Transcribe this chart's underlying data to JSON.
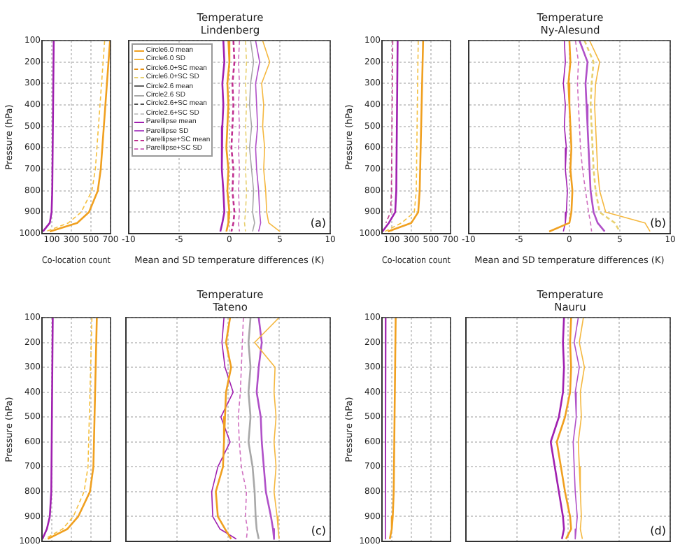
{
  "chart_data": [
    {
      "type": "line",
      "xlabel": "Co-location count",
      "ylabel": "Pressure (hPa)",
      "xlim": [
        0,
        700
      ],
      "xticks": [
        100,
        300,
        500,
        700
      ],
      "ylim": [
        1000,
        100
      ],
      "yticks": [
        100,
        200,
        300,
        400,
        500,
        600,
        700,
        800,
        900,
        1000
      ],
      "grid": true,
      "series": [
        {
          "color": "#f0a020",
          "line_style": "solid",
          "x": [
            695,
            600,
            570,
            480,
            360,
            80
          ],
          "values": [
            100,
            700,
            800,
            900,
            950,
            990
          ]
        },
        {
          "color": "#f5c040",
          "line_style": "dashed",
          "x": [
            640,
            545,
            510,
            400,
            270,
            40
          ],
          "values": [
            100,
            700,
            800,
            900,
            950,
            990
          ]
        },
        {
          "color": "#a020b0",
          "line_style": "solid",
          "x": [
            120,
            105,
            98,
            80,
            10
          ],
          "values": [
            100,
            800,
            900,
            950,
            990
          ]
        }
      ]
    },
    {
      "type": "line",
      "title": "Temperature",
      "subtitle": "Lindenberg",
      "xlabel": "Mean and SD temperature differences (K)",
      "xlim": [
        -10,
        10
      ],
      "xticks": [
        -10,
        -5,
        0,
        5,
        10
      ],
      "ylim": [
        1000,
        100
      ],
      "yticks": [
        100,
        200,
        300,
        400,
        500,
        600,
        700,
        800,
        900,
        1000
      ],
      "grid": true,
      "tick_labels": "x",
      "legend": "top left",
      "annotations": [
        "(a)"
      ],
      "series": [
        {
          "name": "Circle6.0 mean",
          "color": "#f0a020",
          "line_style": "solid",
          "x": [
            -0.1,
            0.0,
            -0.2,
            -0.1,
            -0.2,
            -0.3,
            -0.1,
            -0.2,
            0.0,
            -0.1,
            -0.3
          ],
          "values": [
            100,
            200,
            300,
            400,
            500,
            600,
            700,
            800,
            900,
            950,
            990
          ]
        },
        {
          "name": "Circle6.0 SD",
          "color": "#f5b840",
          "line_style": "solid",
          "x": [
            3.3,
            4.0,
            3.2,
            3.4,
            3.3,
            3.5,
            3.4,
            3.6,
            3.7,
            3.9,
            5.0
          ],
          "values": [
            100,
            200,
            300,
            400,
            500,
            600,
            700,
            800,
            900,
            950,
            990
          ]
        },
        {
          "name": "Circle6.0+SC mean",
          "color": "#e89010",
          "line_style": "dashed"
        },
        {
          "name": "Circle6.0+SC SD",
          "color": "#e8d070",
          "line_style": "dashed",
          "x": [
            1.6,
            1.7,
            1.6,
            1.7,
            1.6,
            1.7,
            1.6,
            1.7,
            1.6,
            1.5,
            1.6
          ],
          "values": [
            100,
            200,
            300,
            400,
            500,
            600,
            700,
            800,
            900,
            950,
            990
          ]
        },
        {
          "name": "Circle2.6 mean",
          "color": "#606060",
          "line_style": "solid"
        },
        {
          "name": "Circle2.6 SD",
          "color": "#a8a8a8",
          "line_style": "solid",
          "x": [
            2.1,
            2.4,
            2.1,
            2.0,
            2.2,
            2.0,
            2.2,
            2.4,
            2.3,
            2.5,
            2.3
          ],
          "values": [
            100,
            200,
            300,
            400,
            500,
            600,
            700,
            800,
            900,
            950,
            990
          ]
        },
        {
          "name": "Circle2.6+SC mean",
          "color": "#505050",
          "line_style": "dashed"
        },
        {
          "name": "Circle2.6+SC SD",
          "color": "#c8c8c8",
          "line_style": "dashed"
        },
        {
          "name": "Parellipse mean",
          "color": "#a020b0",
          "line_style": "solid",
          "x": [
            -0.6,
            -0.5,
            -0.7,
            -0.6,
            -0.7,
            -0.8,
            -0.7,
            -0.6,
            -0.5,
            -0.7,
            -0.9
          ],
          "values": [
            100,
            200,
            300,
            400,
            500,
            600,
            700,
            800,
            900,
            950,
            990
          ]
        },
        {
          "name": "Parellipse SD",
          "color": "#b050c8",
          "line_style": "solid",
          "x": [
            2.6,
            3.0,
            2.6,
            2.7,
            2.8,
            2.6,
            2.7,
            2.9,
            3.0,
            3.1,
            2.9
          ],
          "values": [
            100,
            200,
            300,
            400,
            500,
            600,
            700,
            800,
            900,
            950,
            990
          ]
        },
        {
          "name": "Parellipse+SC mean",
          "color": "#c03090",
          "line_style": "dashed",
          "x": [
            0.4,
            0.5,
            0.3,
            0.4,
            0.3,
            0.2,
            0.4,
            0.3,
            0.5,
            0.4,
            0.2
          ],
          "values": [
            100,
            200,
            300,
            400,
            500,
            600,
            700,
            800,
            900,
            950,
            990
          ]
        },
        {
          "name": "Parellipse+SC SD",
          "color": "#d070c0",
          "line_style": "dashed",
          "x": [
            1.0,
            0.9,
            1.0,
            0.9,
            1.0,
            0.9,
            1.0,
            0.9,
            1.0,
            0.9,
            1.0
          ],
          "values": [
            100,
            200,
            300,
            400,
            500,
            600,
            700,
            800,
            900,
            950,
            990
          ]
        }
      ]
    },
    {
      "type": "line",
      "xlabel": "Co-location count",
      "ylabel": "Pressure (hPa)",
      "xlim": [
        0,
        700
      ],
      "xticks": [
        100,
        300,
        500,
        700
      ],
      "ylim": [
        1000,
        100
      ],
      "yticks": [
        100,
        200,
        300,
        400,
        500,
        600,
        700,
        800,
        900,
        1000
      ],
      "grid": true,
      "series": [
        {
          "color": "#f0a020",
          "line_style": "solid",
          "x": [
            420,
            385,
            370,
            300,
            60
          ],
          "values": [
            100,
            800,
            900,
            950,
            990
          ]
        },
        {
          "color": "#f5c040",
          "line_style": "dashed",
          "x": [
            370,
            350,
            330,
            200,
            30
          ],
          "values": [
            100,
            800,
            900,
            950,
            990
          ]
        },
        {
          "color": "#a020b0",
          "line_style": "solid",
          "x": [
            160,
            146,
            135,
            70,
            5
          ],
          "values": [
            100,
            800,
            900,
            950,
            990
          ]
        },
        {
          "color": "#c04090",
          "line_style": "dashed",
          "x": [
            110,
            96,
            88,
            40
          ],
          "values": [
            100,
            800,
            900,
            950
          ]
        }
      ]
    },
    {
      "type": "line",
      "title": "Temperature",
      "subtitle": "Ny-Alesund",
      "xlabel": "Mean and SD temperature differences (K)",
      "xlim": [
        -10,
        10
      ],
      "xticks": [
        -10,
        -5,
        0,
        5,
        10
      ],
      "ylim": [
        1000,
        100
      ],
      "yticks": [
        100,
        200,
        300,
        400,
        500,
        600,
        700,
        800,
        900,
        1000
      ],
      "grid": true,
      "tick_labels": "x",
      "annotations": [
        "(b)"
      ],
      "series": [
        {
          "color": "#f0a020",
          "line_style": "solid",
          "x": [
            0.0,
            0.1,
            -0.1,
            0.0,
            0.1,
            0.2,
            0.1,
            0.3,
            0.2,
            0.0,
            -2.0
          ],
          "values": [
            100,
            200,
            300,
            400,
            500,
            600,
            700,
            800,
            900,
            950,
            990
          ]
        },
        {
          "color": "#f5b840",
          "line_style": "solid",
          "x": [
            2.0,
            3.0,
            2.6,
            2.5,
            2.6,
            2.7,
            2.8,
            3.0,
            3.6,
            7.5,
            8.0
          ],
          "values": [
            100,
            200,
            300,
            400,
            500,
            600,
            700,
            800,
            900,
            950,
            990
          ]
        },
        {
          "color": "#e8d070",
          "line_style": "dashed",
          "x": [
            1.5,
            2.4,
            2.2,
            2.1,
            2.2,
            2.3,
            2.4,
            2.6,
            3.0,
            4.5,
            5.0
          ],
          "values": [
            100,
            200,
            300,
            400,
            500,
            600,
            700,
            800,
            900,
            950,
            990
          ]
        },
        {
          "color": "#a020b0",
          "line_style": "solid",
          "x": [
            -0.5,
            -0.4,
            -0.6,
            -0.4,
            -0.5,
            -0.3,
            -0.4,
            -0.2,
            -0.3,
            -0.4,
            -0.6
          ],
          "values": [
            100,
            200,
            300,
            400,
            500,
            600,
            700,
            800,
            900,
            950,
            990
          ]
        },
        {
          "color": "#b050c8",
          "line_style": "solid",
          "x": [
            1.0,
            1.8,
            1.6,
            1.7,
            1.8,
            1.9,
            2.0,
            2.1,
            2.4,
            2.8,
            3.5
          ],
          "values": [
            100,
            200,
            300,
            400,
            500,
            600,
            700,
            800,
            900,
            950,
            990
          ]
        },
        {
          "color": "#d070c0",
          "line_style": "dashed",
          "x": [
            0.6,
            0.9,
            0.8,
            0.9,
            1.0,
            1.1,
            1.3,
            1.6,
            1.9,
            2.1,
            2.2
          ],
          "values": [
            100,
            200,
            300,
            400,
            500,
            600,
            700,
            800,
            900,
            950,
            990
          ]
        }
      ]
    },
    {
      "type": "line",
      "ylabel": "Pressure (hPa)",
      "xlim": [
        0,
        700
      ],
      "xticks": [
        100,
        300,
        500,
        700
      ],
      "ylim": [
        1000,
        100
      ],
      "yticks": [
        100,
        200,
        300,
        400,
        500,
        600,
        700,
        800,
        900,
        1000
      ],
      "grid": true,
      "tick_labels": "y",
      "series": [
        {
          "color": "#f0a020",
          "line_style": "solid",
          "x": [
            560,
            525,
            490,
            370,
            260,
            60
          ],
          "values": [
            100,
            700,
            800,
            900,
            950,
            990
          ]
        },
        {
          "color": "#f5c040",
          "line_style": "dashed",
          "x": [
            510,
            470,
            430,
            320,
            210,
            30
          ],
          "values": [
            100,
            700,
            800,
            900,
            950,
            990
          ]
        },
        {
          "color": "#a020b0",
          "line_style": "solid",
          "x": [
            110,
            95,
            80,
            50,
            5
          ],
          "values": [
            100,
            800,
            900,
            950,
            990
          ]
        }
      ]
    },
    {
      "type": "line",
      "title": "Temperature",
      "subtitle": "Tateno",
      "xlim": [
        -10,
        10
      ],
      "xticks": [
        -10,
        -5,
        0,
        5,
        10
      ],
      "ylim": [
        1000,
        100
      ],
      "yticks": [
        100,
        200,
        300,
        400,
        500,
        600,
        700,
        800,
        900,
        1000
      ],
      "grid": true,
      "tick_labels": false,
      "annotations": [
        "(c)"
      ],
      "series": [
        {
          "color": "#f0a020",
          "line_style": "solid",
          "x": [
            0.2,
            -0.2,
            0.3,
            -0.2,
            -0.3,
            -0.4,
            -0.5,
            -1.2,
            -1.0,
            -0.3,
            0.3
          ],
          "values": [
            100,
            200,
            300,
            400,
            500,
            600,
            700,
            800,
            900,
            950,
            990
          ]
        },
        {
          "color": "#f5b840",
          "line_style": "solid",
          "x": [
            5.0,
            2.6,
            4.6,
            4.5,
            4.7,
            4.5,
            4.7,
            4.5,
            4.8,
            4.9,
            5.0
          ],
          "values": [
            100,
            200,
            300,
            400,
            500,
            600,
            700,
            800,
            900,
            950,
            990
          ]
        },
        {
          "color": "#a8a8a8",
          "line_style": "solid",
          "x": [
            2.2,
            2.0,
            2.2,
            2.0,
            2.2,
            2.0,
            2.4,
            2.6,
            2.7,
            2.8,
            3.0
          ],
          "values": [
            100,
            200,
            300,
            400,
            500,
            600,
            700,
            800,
            900,
            950,
            990
          ]
        },
        {
          "color": "#a020b0",
          "line_style": "solid",
          "x": [
            -0.4,
            -0.6,
            -0.3,
            0.5,
            -0.7,
            0.2,
            -1.0,
            -1.6,
            -1.5,
            -0.8,
            0.8
          ],
          "values": [
            100,
            200,
            300,
            400,
            500,
            600,
            700,
            800,
            900,
            950,
            990
          ]
        },
        {
          "color": "#b050c8",
          "line_style": "solid",
          "x": [
            3.0,
            3.3,
            3.0,
            2.8,
            3.2,
            3.3,
            3.5,
            3.7,
            4.2,
            4.4,
            4.5
          ],
          "values": [
            100,
            200,
            300,
            400,
            500,
            600,
            700,
            800,
            900,
            950,
            990
          ]
        },
        {
          "color": "#d070c0",
          "line_style": "dashed",
          "x": [
            1.5,
            1.4,
            1.3,
            1.2,
            1.0,
            1.1,
            1.3,
            1.8,
            1.7,
            1.9,
            1.8
          ],
          "values": [
            100,
            200,
            300,
            400,
            500,
            600,
            700,
            800,
            900,
            950,
            990
          ]
        }
      ]
    },
    {
      "type": "line",
      "ylabel": "Pressure (hPa)",
      "xlim": [
        0,
        700
      ],
      "xticks": [
        100,
        300,
        500,
        700
      ],
      "ylim": [
        1000,
        100
      ],
      "yticks": [
        100,
        200,
        300,
        400,
        500,
        600,
        700,
        800,
        900,
        1000
      ],
      "grid": true,
      "tick_labels": "y",
      "series": [
        {
          "color": "#f0a020",
          "line_style": "solid",
          "x": [
            140,
            120,
            110,
            100,
            80
          ],
          "values": [
            100,
            800,
            900,
            950,
            990
          ]
        },
        {
          "color": "#a020b0",
          "line_style": "solid",
          "x": [
            40,
            35
          ],
          "values": [
            100,
            990
          ]
        }
      ]
    },
    {
      "type": "line",
      "title": "Temperature",
      "subtitle": "Nauru",
      "xlim": [
        -10,
        10
      ],
      "xticks": [
        -10,
        -5,
        0,
        5,
        10
      ],
      "ylim": [
        1000,
        100
      ],
      "yticks": [
        100,
        200,
        300,
        400,
        500,
        600,
        700,
        800,
        900,
        1000
      ],
      "grid": true,
      "tick_labels": false,
      "annotations": [
        "(d)"
      ],
      "series": [
        {
          "color": "#f0a020",
          "line_style": "solid",
          "x": [
            0.3,
            0.2,
            0.3,
            0.2,
            -0.3,
            -1.1,
            -0.7,
            -0.3,
            0.2,
            0.3,
            -0.2
          ],
          "values": [
            100,
            200,
            300,
            400,
            500,
            600,
            700,
            800,
            900,
            950,
            990
          ]
        },
        {
          "color": "#f5b840",
          "line_style": "solid",
          "x": [
            1.5,
            1.1,
            1.6,
            1.2,
            1.3,
            1.0,
            1.1,
            1.2,
            1.3,
            1.2,
            1.4
          ],
          "values": [
            100,
            200,
            300,
            400,
            500,
            600,
            700,
            800,
            900,
            950,
            990
          ]
        },
        {
          "color": "#a020b0",
          "line_style": "solid",
          "x": [
            -0.4,
            -0.5,
            -0.4,
            -0.5,
            -0.9,
            -1.7,
            -1.3,
            -0.9,
            -0.5,
            -0.4,
            -0.6
          ],
          "values": [
            100,
            200,
            300,
            400,
            500,
            600,
            700,
            800,
            900,
            950,
            990
          ]
        },
        {
          "color": "#b050c8",
          "line_style": "solid",
          "x": [
            1.0,
            0.6,
            1.1,
            0.7,
            0.8,
            0.5,
            0.6,
            0.7,
            0.9,
            0.8,
            0.7
          ],
          "values": [
            100,
            200,
            300,
            400,
            500,
            600,
            700,
            800,
            900,
            950,
            990
          ]
        }
      ]
    }
  ]
}
